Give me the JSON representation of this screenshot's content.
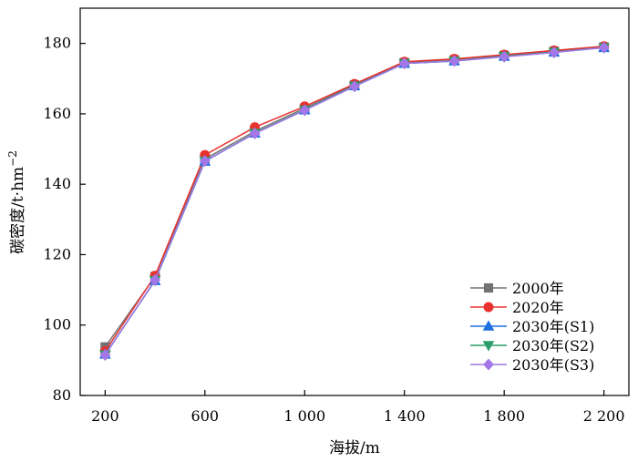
{
  "chart_data": {
    "type": "line",
    "xlabel": "海拔/m",
    "ylabel": "碳密度/t·hm",
    "ylabel_sup": "−2",
    "xlim": [
      100,
      2300
    ],
    "ylim": [
      80,
      190
    ],
    "x": [
      200,
      400,
      600,
      800,
      1000,
      1200,
      1400,
      1600,
      1800,
      2000,
      2200
    ],
    "x_ticks": [
      200,
      600,
      1000,
      1400,
      1800,
      2200
    ],
    "x_tick_labels": [
      "200",
      "600",
      "1 000",
      "1 400",
      "1 800",
      "2 200"
    ],
    "y_ticks": [
      80,
      100,
      120,
      140,
      160,
      180
    ],
    "y_tick_labels": [
      "80",
      "100",
      "120",
      "140",
      "160",
      "180"
    ],
    "grid": false,
    "legend_position": "bottom-right",
    "series": [
      {
        "name": "2000年",
        "color": "#737373",
        "marker": "square",
        "values": [
          93.8,
          113.8,
          147.2,
          155.0,
          161.6,
          168.2,
          174.6,
          175.4,
          176.6,
          177.8,
          179.0
        ]
      },
      {
        "name": "2020年",
        "color": "#e8322e",
        "marker": "circle",
        "values": [
          92.6,
          114.0,
          148.3,
          156.2,
          162.1,
          168.5,
          174.8,
          175.6,
          176.8,
          178.0,
          179.2
        ]
      },
      {
        "name": "2030年(S1)",
        "color": "#1e6fe0",
        "marker": "triangle-up",
        "values": [
          91.7,
          112.6,
          146.5,
          154.5,
          161.1,
          167.9,
          174.3,
          175.0,
          176.3,
          177.5,
          178.8
        ]
      },
      {
        "name": "2030年(S2)",
        "color": "#2a9d6a",
        "marker": "triangle-down",
        "values": [
          91.6,
          112.7,
          146.6,
          154.5,
          161.1,
          167.9,
          174.3,
          175.0,
          176.3,
          177.5,
          178.8
        ]
      },
      {
        "name": "2030年(S3)",
        "color": "#a477e8",
        "marker": "diamond",
        "values": [
          91.5,
          112.8,
          146.6,
          154.4,
          161.0,
          167.8,
          174.3,
          175.0,
          176.2,
          177.4,
          178.8
        ]
      }
    ]
  }
}
